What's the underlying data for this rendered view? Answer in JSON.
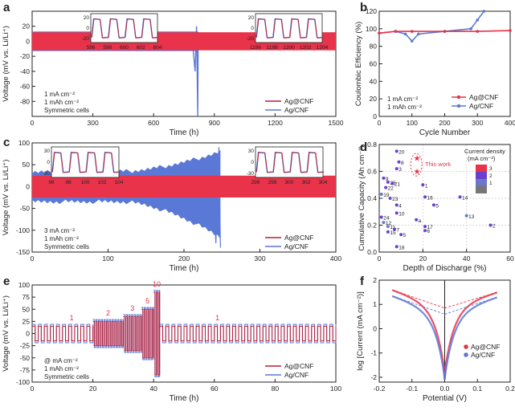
{
  "colors": {
    "ag_cnf": "#e8334a",
    "ag_cnf_dark": "#b51f3a",
    "cnf": "#5a78d6",
    "grid": "#d7d7d7"
  },
  "chart_data": [
    {
      "id": "a",
      "panel_label": "a",
      "type": "line",
      "title": "",
      "xlabel": "Time (h)",
      "ylabel": "Voltage (mV vs. Li/Li⁺)",
      "xlim": [
        0,
        1500
      ],
      "ylim": [
        -100,
        40
      ],
      "xticks": [
        "0",
        "300",
        "600",
        "900",
        "1200",
        "1500"
      ],
      "yticks": [
        "-80",
        "-60",
        "-40",
        "-20",
        "0",
        "20"
      ],
      "conditions": [
        "1 mA cm⁻²",
        "1 mAh cm⁻²",
        "Symmetric cells"
      ],
      "legend": [
        "Ag@CNF",
        "Ag/CNF"
      ],
      "series": [
        {
          "name": "Ag@CNF",
          "x_range": [
            0,
            1500
          ],
          "amplitude_mV": 12
        },
        {
          "name": "Ag/CNF",
          "x_range": [
            0,
            820
          ],
          "amplitude_mV": 12,
          "failure_time_h": 820,
          "spike_to_mV": -100
        }
      ],
      "insets": [
        {
          "xticks": [
            "596",
            "598",
            "600",
            "602",
            "604"
          ],
          "yticks": [
            "20",
            "0",
            "-20"
          ]
        },
        {
          "xticks": [
            "1196",
            "1198",
            "1200",
            "1202",
            "1204"
          ],
          "yticks": [
            "20",
            "0",
            "-20"
          ]
        }
      ]
    },
    {
      "id": "b",
      "panel_label": "b",
      "type": "line",
      "xlabel": "Cycle Number",
      "ylabel": "Coulombic Efficiency (%)",
      "xlim": [
        0,
        400
      ],
      "ylim": [
        0,
        120
      ],
      "xticks": [
        "0",
        "100",
        "200",
        "300",
        "400"
      ],
      "yticks": [
        "0",
        "20",
        "40",
        "60",
        "80",
        "100",
        "120"
      ],
      "conditions": [
        "1 mA cm⁻²",
        "1 mAh cm⁻²"
      ],
      "legend": [
        "Ag@CNF",
        "Ag/CNF"
      ],
      "series": [
        {
          "name": "Ag@CNF",
          "x": [
            0,
            50,
            100,
            200,
            300,
            400
          ],
          "y": [
            95,
            97,
            97,
            97,
            97,
            98
          ]
        },
        {
          "name": "Ag/CNF",
          "x": [
            0,
            50,
            80,
            100,
            120,
            200,
            280,
            300,
            320
          ],
          "y": [
            95,
            97,
            94,
            86,
            94,
            97,
            100,
            110,
            120
          ]
        }
      ]
    },
    {
      "id": "c",
      "panel_label": "c",
      "type": "line",
      "xlabel": "Time (h)",
      "ylabel": "Voltage (mV vs. Li/Li⁺)",
      "xlim": [
        0,
        400
      ],
      "ylim": [
        -150,
        100
      ],
      "xticks": [
        "0",
        "100",
        "200",
        "300",
        "400"
      ],
      "yticks": [
        "-150",
        "-100",
        "-50",
        "0",
        "50",
        "100"
      ],
      "conditions": [
        "3 mA cm⁻²",
        "1 mAh cm⁻²",
        "Symmetric cells"
      ],
      "legend": [
        "Ag@CNF",
        "Ag/CNF"
      ],
      "series": [
        {
          "name": "Ag@CNF",
          "x_range": [
            0,
            400
          ],
          "amplitude_mV": 25
        },
        {
          "name": "Ag/CNF",
          "x_range": [
            0,
            248
          ],
          "amplitude_mV": 30,
          "failure_time_h": 248
        }
      ],
      "insets": [
        {
          "xticks": [
            "96",
            "98",
            "100",
            "102",
            "104"
          ],
          "yticks": [
            "30",
            "0",
            "-30"
          ]
        },
        {
          "xticks": [
            "296",
            "298",
            "300",
            "302",
            "304"
          ],
          "yticks": [
            "30",
            "0",
            "-30"
          ]
        }
      ]
    },
    {
      "id": "d",
      "panel_label": "d",
      "type": "scatter",
      "xlabel": "Depth of Discharge (%)",
      "ylabel": "Cumulative Capacity (Ah cm⁻²)",
      "xlim": [
        0,
        60
      ],
      "ylim": [
        0,
        0.8
      ],
      "xticks": [
        "0",
        "20",
        "40",
        "60"
      ],
      "yticks": [
        "0.0",
        "0.2",
        "0.4",
        "0.6",
        "0.8"
      ],
      "legend_title": [
        "Current density",
        "(mA cm⁻²)"
      ],
      "legend_levels": [
        "3",
        "2",
        "1"
      ],
      "annotation": "This work",
      "points": [
        {
          "label": "20",
          "x": 8,
          "y": 0.75,
          "j": "2"
        },
        {
          "label": "8",
          "x": 9,
          "y": 0.67,
          "j": "2"
        },
        {
          "label": "3",
          "x": 8,
          "y": 0.62,
          "j": "2"
        },
        {
          "label": "9",
          "x": 2,
          "y": 0.55,
          "j": "2"
        },
        {
          "label": "25",
          "x": 4,
          "y": 0.52,
          "j": "2"
        },
        {
          "label": "21",
          "x": 6,
          "y": 0.51,
          "j": "2"
        },
        {
          "label": "22",
          "x": 3,
          "y": 0.48,
          "j": "2"
        },
        {
          "label": "19",
          "x": 1,
          "y": 0.43,
          "j": "1"
        },
        {
          "label": "23",
          "x": 5,
          "y": 0.4,
          "j": "2"
        },
        {
          "label": "4",
          "x": 8,
          "y": 0.35,
          "j": "2"
        },
        {
          "label": "10",
          "x": 8,
          "y": 0.29,
          "j": "2"
        },
        {
          "label": "24",
          "x": 1,
          "y": 0.26,
          "j": "2"
        },
        {
          "label": "12",
          "x": 2,
          "y": 0.22,
          "j": "1"
        },
        {
          "label": "11",
          "x": 4,
          "y": 0.19,
          "j": "1"
        },
        {
          "label": "7",
          "x": 7,
          "y": 0.17,
          "j": "2"
        },
        {
          "label": "15",
          "x": 4,
          "y": 0.15,
          "j": "2"
        },
        {
          "label": "5",
          "x": 10,
          "y": 0.13,
          "j": "2"
        },
        {
          "label": "18",
          "x": 8,
          "y": 0.04,
          "j": "2"
        },
        {
          "label": "1",
          "x": 20,
          "y": 0.5,
          "j": "2"
        },
        {
          "label": "16",
          "x": 21,
          "y": 0.41,
          "j": "2"
        },
        {
          "label": "a",
          "x": 17,
          "y": 0.24,
          "j": "2"
        },
        {
          "label": "17",
          "x": 21,
          "y": 0.19,
          "j": "2"
        },
        {
          "label": "6",
          "x": 21,
          "y": 0.16,
          "j": "2"
        },
        {
          "label": "5",
          "x": 25,
          "y": 0.35,
          "j": "2"
        },
        {
          "label": "14",
          "x": 37,
          "y": 0.41,
          "j": "2"
        },
        {
          "label": "13",
          "x": 40,
          "y": 0.27,
          "j": "1"
        },
        {
          "label": "2",
          "x": 51,
          "y": 0.2,
          "j": "2"
        }
      ],
      "this_work": [
        {
          "label": "",
          "x": 17,
          "y": 0.7,
          "j": "3"
        },
        {
          "label": "",
          "x": 17,
          "y": 0.6,
          "j": "3"
        }
      ]
    },
    {
      "id": "e",
      "panel_label": "e",
      "type": "line",
      "xlabel": "Time (h)",
      "ylabel": "Voltage (mV vs. Li/Li⁺)",
      "xlim": [
        0,
        100
      ],
      "ylim": [
        -100,
        100
      ],
      "xticks": [
        "0",
        "20",
        "40",
        "60",
        "80",
        "100"
      ],
      "yticks": [
        "-100",
        "-75",
        "-50",
        "-25",
        "0",
        "25",
        "50",
        "75",
        "100"
      ],
      "conditions": [
        "@ mA cm⁻²",
        "1 mAh cm⁻²",
        "Symmetric cells"
      ],
      "legend": [
        "Ag@CNF",
        "Ag/CNF"
      ],
      "segments": [
        {
          "rate": "1",
          "x_start": 0,
          "x_end": 20,
          "amp_mV": 15
        },
        {
          "rate": "2",
          "x_start": 20,
          "x_end": 30,
          "amp_mV": 25
        },
        {
          "rate": "3",
          "x_start": 30,
          "x_end": 36,
          "amp_mV": 35
        },
        {
          "rate": "5",
          "x_start": 36,
          "x_end": 40,
          "amp_mV": 50
        },
        {
          "rate": "10",
          "x_start": 40,
          "x_end": 42,
          "amp_mV": 85
        },
        {
          "rate": "1",
          "x_start": 42,
          "x_end": 100,
          "amp_mV": 15
        }
      ]
    },
    {
      "id": "f",
      "panel_label": "f",
      "type": "line",
      "xlabel": "Potential (V)",
      "ylabel": "log [Current (mA cm⁻²)]",
      "xlim": [
        -0.25,
        0.25
      ],
      "ylim": [
        -2.2,
        2.0
      ],
      "xticks": [
        "-0.2",
        "-0.1",
        "0.0",
        "0.1",
        "0.2"
      ],
      "yticks": [
        "-2",
        "-1",
        "0",
        "1",
        "2"
      ],
      "legend": [
        "Ag@CNF",
        "Ag/CNF"
      ],
      "series": [
        {
          "name": "Ag@CNF",
          "i0_log": 0.85,
          "left_end": 1.6,
          "right_end": 1.5
        },
        {
          "name": "Ag/CNF",
          "i0_log": 0.6,
          "left_end": 1.35,
          "right_end": 1.3
        }
      ]
    }
  ]
}
